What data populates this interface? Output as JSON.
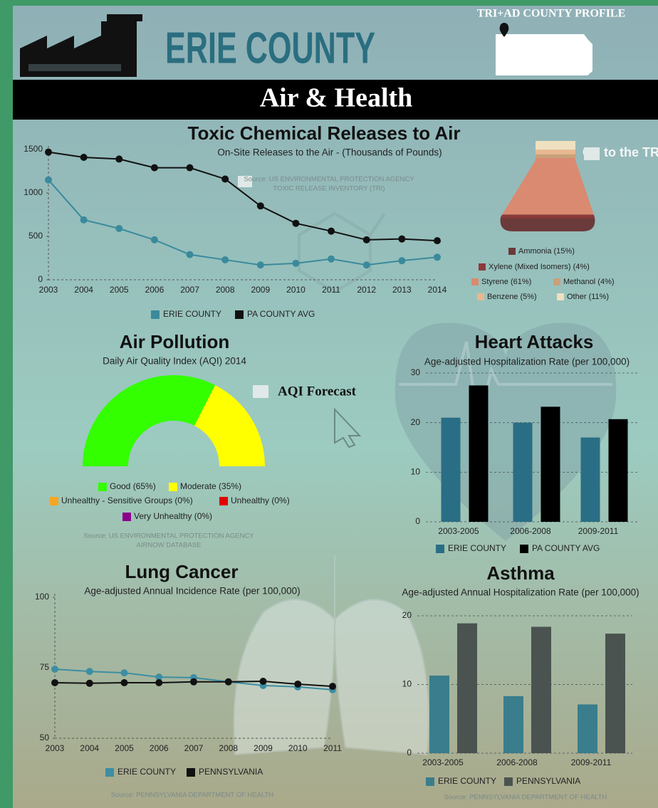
{
  "header": {
    "banner": "TRI+AD COUNTY PROFILE",
    "county": "ERIE COUNTY",
    "topic": "Air & Health"
  },
  "links": {
    "tri": "Go to the TRI",
    "aqi": "AQI Forecast"
  },
  "chart_data": [
    {
      "type": "line",
      "title": "Toxic Chemical Releases to Air",
      "subtitle": "On-Site Releases to the Air - (Thousands of Pounds)",
      "source": [
        "Source: US ENVIRONMENTAL PROTECTION AGENCY",
        "TOXIC RELEASE INVENTORY (TRI)"
      ],
      "categories": [
        "2003",
        "2004",
        "2005",
        "2006",
        "2007",
        "2008",
        "2009",
        "2010",
        "2011",
        "2012",
        "2013",
        "2014"
      ],
      "series": [
        {
          "name": "ERIE COUNTY",
          "color": "#3a8a9c",
          "values": [
            1150,
            690,
            590,
            460,
            290,
            230,
            170,
            190,
            240,
            170,
            220,
            260
          ]
        },
        {
          "name": "PA COUNTY AVG",
          "color": "#111111",
          "values": [
            1470,
            1410,
            1390,
            1290,
            1290,
            1160,
            850,
            650,
            560,
            460,
            470,
            450
          ]
        }
      ],
      "ylim": [
        0,
        1500
      ],
      "yticks": [
        0,
        500,
        1000,
        1500
      ],
      "grid": false
    },
    {
      "type": "flask",
      "categories": [
        "Ammonia (15%)",
        "Xylene (Mixed Isomers) (4%)",
        "Styrene (61%)",
        "Methanol (4%)",
        "Benzene (5%)",
        "Other (11%)"
      ],
      "values": [
        15,
        4,
        61,
        4,
        5,
        11
      ],
      "colors": [
        "#6b3a3a",
        "#8c3a3a",
        "#d98a70",
        "#c9a07a",
        "#e8b890",
        "#efe0c0"
      ]
    },
    {
      "type": "gauge",
      "title": "Air Pollution",
      "subtitle": "Daily Air Quality Index (AQI) 2014",
      "source": [
        "Source: US ENVIRONMENTAL PROTECTION AGENCY",
        "AIRNOW DATABASE"
      ],
      "categories": [
        "Good (65%)",
        "Moderate (35%)",
        "Unhealthy - Sensitive Groups (0%)",
        "Unhealthy (0%)",
        "Very Unhealthy (0%)"
      ],
      "values": [
        65,
        35,
        0,
        0,
        0
      ],
      "colors": [
        "#33ff00",
        "#ffff00",
        "#f5a623",
        "#e00000",
        "#8b008b"
      ]
    },
    {
      "type": "bar",
      "title": "Heart Attacks",
      "subtitle": "Age-adjusted Hospitalization Rate (per 100,000)",
      "categories": [
        "2003-2005",
        "2006-2008",
        "2009-2011"
      ],
      "series": [
        {
          "name": "ERIE COUNTY",
          "color": "#2a6e85",
          "values": [
            21,
            20,
            17
          ]
        },
        {
          "name": "PA COUNTY AVG",
          "color": "#000000",
          "values": [
            27.5,
            23.2,
            20.7
          ]
        }
      ],
      "ylim": [
        0,
        30
      ],
      "yticks": [
        0,
        10,
        20,
        30
      ],
      "grid": true
    },
    {
      "type": "line",
      "title": "Lung Cancer",
      "subtitle": "Age-adjusted Annual Incidence Rate (per 100,000)",
      "source": [
        "Source: PENNSYLVANIA DEPARTMENT OF HEALTH"
      ],
      "categories": [
        "2003",
        "2004",
        "2005",
        "2006",
        "2007",
        "2008",
        "2009",
        "2010",
        "2011"
      ],
      "series": [
        {
          "name": "ERIE COUNTY",
          "color": "#3d8ea3",
          "values": [
            74.5,
            73.7,
            73.2,
            71.7,
            71.5,
            70,
            68.7,
            68.2,
            67.2
          ]
        },
        {
          "name": "PENNSYLVANIA",
          "color": "#111111",
          "values": [
            69.7,
            69.5,
            69.7,
            69.7,
            70,
            70,
            70.2,
            69.2,
            68.4
          ]
        }
      ],
      "ylim": [
        50,
        100
      ],
      "yticks": [
        50,
        75,
        100
      ],
      "grid": false
    },
    {
      "type": "bar",
      "title": "Asthma",
      "subtitle": "Age-adjusted Annual Hospitalization Rate (per 100,000)",
      "source": [
        "Source: PENNSYLVANIA DEPARTMENT OF HEALTH"
      ],
      "categories": [
        "2003-2005",
        "2006-2008",
        "2009-2011"
      ],
      "series": [
        {
          "name": "ERIE COUNTY",
          "color": "#3a7d8c",
          "values": [
            11.3,
            8.3,
            7.1
          ]
        },
        {
          "name": "PENNSYLVANIA",
          "color": "#4a5350",
          "values": [
            18.9,
            18.4,
            17.4
          ]
        }
      ],
      "ylim": [
        0,
        20
      ],
      "yticks": [
        0,
        10,
        20
      ],
      "grid": true
    }
  ]
}
